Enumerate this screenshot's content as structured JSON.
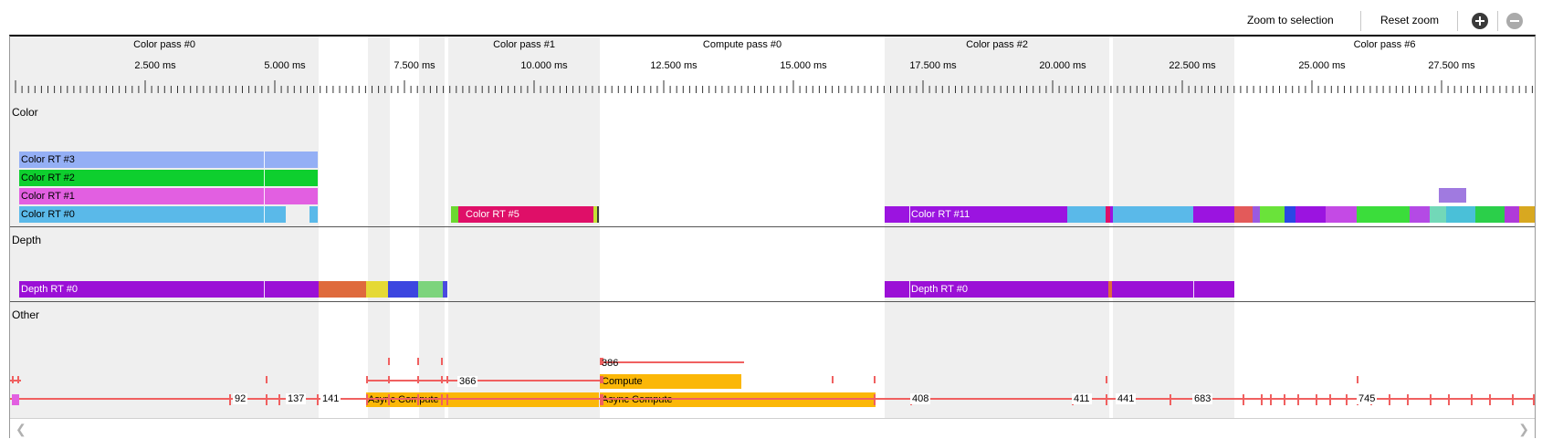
{
  "toolbar": {
    "zoom_to_selection": "Zoom to selection",
    "reset_zoom": "Reset zoom",
    "zoom_in_icon": "plus-circle-icon",
    "zoom_out_icon": "minus-circle-icon"
  },
  "passes": [
    {
      "label": "Color pass #0"
    },
    {
      "label": "Color pass #1"
    },
    {
      "label": "Compute pass #0"
    },
    {
      "label": "Color pass #2"
    },
    {
      "label": "Color pass #6"
    }
  ],
  "ruler": {
    "labels": [
      "2.500 ms",
      "5.000 ms",
      "7.500 ms",
      "10.000 ms",
      "12.500 ms",
      "15.000 ms",
      "17.500 ms",
      "20.000 ms",
      "22.500 ms",
      "25.000 ms",
      "27.500 ms"
    ]
  },
  "sections": {
    "color": "Color",
    "depth": "Depth",
    "other": "Other"
  },
  "color_bars": {
    "rt3": "Color RT #3",
    "rt2": "Color RT #2",
    "rt1": "Color RT #1",
    "rt0": "Color RT #0",
    "rt5": "Color RT #5",
    "rt11": "Color RT #11"
  },
  "depth_bars": {
    "rt0_a": "Depth RT #0",
    "rt0_b": "Depth RT #0"
  },
  "other": {
    "labels": [
      "92",
      "137",
      "141",
      "366",
      "386",
      "408",
      "411",
      "441",
      "683",
      "745"
    ],
    "async_compute_1": "Async Compute",
    "async_compute_2": "Async Compute",
    "compute": "Compute"
  },
  "colors": {
    "rt3": "#94aff5",
    "rt2": "#0ecf2e",
    "rt1": "#e25fe1",
    "rt0": "#5ab9e9",
    "rt5": "#df0f68",
    "rt11": "#9b14e0",
    "depth": "#9b10d6",
    "compute": "#fbb707",
    "marker": "#f06060"
  }
}
